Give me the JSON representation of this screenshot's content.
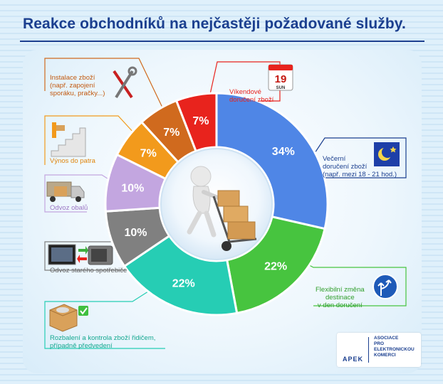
{
  "title": "Reakce obchodníků na nejčastěji požadované služby.",
  "chart_data": {
    "type": "pie",
    "subtype": "donut",
    "slices": [
      {
        "label": "Večerní doručení zboží (např. mezi 18 - 21 hod.)",
        "value": 34,
        "value_label": "34%",
        "color": "#4f86e6",
        "icon": "moon-star-icon"
      },
      {
        "label": "Flexibilní změna destinace v den doručení",
        "value": 22,
        "value_label": "22%",
        "color": "#47c43f",
        "icon": "direction-sign-icon"
      },
      {
        "label": "Rozbalení a kontrola zboží řidičem, případně předvedení",
        "value": 22,
        "value_label": "22%",
        "color": "#26cdb4",
        "icon": "open-box-check-icon"
      },
      {
        "label": "Odvoz starého spotřebiče",
        "value": 10,
        "value_label": "10%",
        "color": "#808080",
        "icon": "tv-swap-icon"
      },
      {
        "label": "Odvoz obalů",
        "value": 10,
        "value_label": "10%",
        "color": "#c3a6e0",
        "icon": "truck-icon"
      },
      {
        "label": "Výnos do patra",
        "value": 7,
        "value_label": "7%",
        "color": "#f29a1c",
        "icon": "stairs-icon"
      },
      {
        "label": "Instalace zboží (např. zapojení sporáku, pračky...)",
        "value": 7,
        "value_label": "7%",
        "color": "#d06a1e",
        "icon": "tools-icon"
      },
      {
        "label": "Víkendové doručení zboží",
        "value": 7,
        "value_label": "7%",
        "color": "#e8231d",
        "icon": "calendar-icon"
      }
    ]
  },
  "labels": {
    "vecerni": [
      "Večerní",
      "doručení zboží",
      "(např. mezi 18 - 21 hod.)"
    ],
    "flexibilni": [
      "Flexibilní změna",
      "destinace",
      "v den doručení"
    ],
    "rozbaleni": [
      "Rozbalení a kontrola zboží řidičem,",
      "případně předvedení"
    ],
    "odvoz_spotrebice": [
      "Odvoz starého spotřebiče"
    ],
    "odvoz_obalu": [
      "Odvoz obalů"
    ],
    "vynos": [
      "Výnos do patra"
    ],
    "instalace": [
      "Instalace zboží",
      "(např. zapojení",
      "sporáku, pračky...)"
    ],
    "vikendove": [
      "Víkendové",
      "doručení zboží"
    ]
  },
  "calendar": {
    "day": "19",
    "weekday": "SUN"
  },
  "logo": {
    "name": "APEK",
    "text": [
      "ASOCIACE",
      "PRO",
      "ELEKTRONICKOU",
      "KOMERCI"
    ]
  },
  "colors": {
    "title": "#1b3f8f",
    "blue": "#4f86e6",
    "green": "#47c43f",
    "teal": "#26cdb4",
    "gray": "#808080",
    "lilac": "#c3a6e0",
    "orange": "#f29a1c",
    "darkorange": "#d06a1e",
    "red": "#e8231d"
  }
}
